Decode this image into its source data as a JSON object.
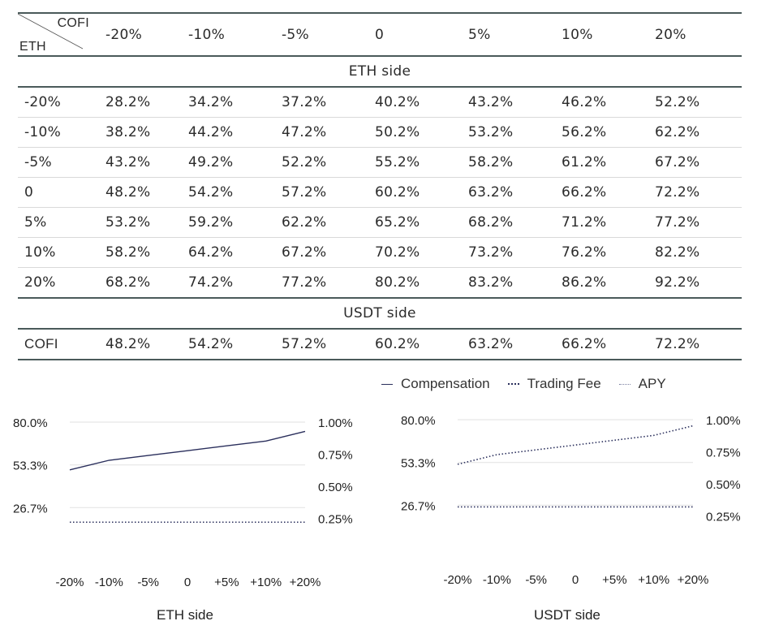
{
  "table": {
    "corner_top": "COFI",
    "corner_bottom": "ETH",
    "col_headers": [
      "-20%",
      "-10%",
      "-5%",
      "0",
      "5%",
      "10%",
      "20%"
    ],
    "eth_section_label": "ETH side",
    "eth_rows": [
      {
        "label": "-20%",
        "values": [
          "28.2%",
          "34.2%",
          "37.2%",
          "40.2%",
          "43.2%",
          "46.2%",
          "52.2%"
        ]
      },
      {
        "label": "-10%",
        "values": [
          "38.2%",
          "44.2%",
          "47.2%",
          "50.2%",
          "53.2%",
          "56.2%",
          "62.2%"
        ]
      },
      {
        "label": "-5%",
        "values": [
          "43.2%",
          "49.2%",
          "52.2%",
          "55.2%",
          "58.2%",
          "61.2%",
          "67.2%"
        ]
      },
      {
        "label": "0",
        "values": [
          "48.2%",
          "54.2%",
          "57.2%",
          "60.2%",
          "63.2%",
          "66.2%",
          "72.2%"
        ]
      },
      {
        "label": "5%",
        "values": [
          "53.2%",
          "59.2%",
          "62.2%",
          "65.2%",
          "68.2%",
          "71.2%",
          "77.2%"
        ]
      },
      {
        "label": "10%",
        "values": [
          "58.2%",
          "64.2%",
          "67.2%",
          "70.2%",
          "73.2%",
          "76.2%",
          "82.2%"
        ]
      },
      {
        "label": "20%",
        "values": [
          "68.2%",
          "74.2%",
          "77.2%",
          "80.2%",
          "83.2%",
          "86.2%",
          "92.2%"
        ]
      }
    ],
    "usdt_section_label": "USDT side",
    "usdt_rows": [
      {
        "label": "COFI",
        "values": [
          "48.2%",
          "54.2%",
          "57.2%",
          "60.2%",
          "63.2%",
          "66.2%",
          "72.2%"
        ]
      }
    ]
  },
  "legend": {
    "compensation": "Compensation",
    "trading_fee": "Trading Fee",
    "apy": "APY"
  },
  "colors": {
    "series_line": "#2a2f5c",
    "grid": "#e2e2e2",
    "rule": "#4a5a5a"
  },
  "chart_data": [
    {
      "type": "line",
      "title": "ETH side",
      "categories": [
        "-20%",
        "-10%",
        "-5%",
        "0",
        "+5%",
        "+10%",
        "+20%"
      ],
      "y_left_ticks": [
        "80.0%",
        "53.3%",
        "26.7%"
      ],
      "y_left_range": [
        0,
        80
      ],
      "y_right_ticks": [
        "1.00%",
        "0.75%",
        "0.50%",
        "0.25%"
      ],
      "y_right_range": [
        0,
        1
      ],
      "grid": true,
      "series": [
        {
          "name": "APY",
          "axis": "left",
          "style": "solid",
          "values": [
            50.2,
            56.2,
            59.2,
            62.2,
            65.2,
            68.2,
            74.2
          ]
        },
        {
          "name": "Trading Fee",
          "axis": "right",
          "style": "dotted",
          "values": [
            0.22,
            0.22,
            0.22,
            0.22,
            0.22,
            0.22,
            0.22
          ]
        }
      ]
    },
    {
      "type": "line",
      "title": "USDT side",
      "categories": [
        "-20%",
        "-10%",
        "-5%",
        "0",
        "+5%",
        "+10%",
        "+20%"
      ],
      "y_left_ticks": [
        "80.0%",
        "53.3%",
        "26.7%"
      ],
      "y_left_range": [
        0,
        80
      ],
      "y_right_ticks": [
        "1.00%",
        "0.75%",
        "0.50%",
        "0.25%"
      ],
      "y_right_range": [
        0,
        1
      ],
      "grid": true,
      "series": [
        {
          "name": "APY",
          "axis": "left",
          "style": "dotted",
          "values": [
            52.2,
            58.2,
            61.2,
            64.2,
            67.2,
            70.2,
            76.2
          ]
        },
        {
          "name": "Trading Fee",
          "axis": "right",
          "style": "dotted",
          "values": [
            0.32,
            0.32,
            0.32,
            0.32,
            0.32,
            0.32,
            0.32
          ]
        }
      ]
    }
  ]
}
